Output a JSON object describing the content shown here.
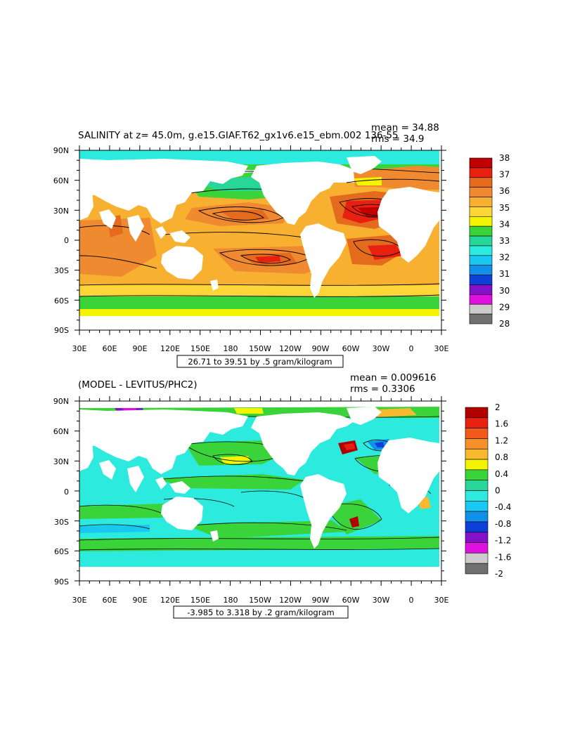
{
  "top": {
    "title": "SALINITY at z=  45.0m, g.e15.GIAF.T62_gx1v6.e15_ebm.002 136-55",
    "mean": "mean = 34.88",
    "rms": "rms = 34.9",
    "range_label": "26.71 to 39.51 by .5 gram/kilogram",
    "colorbar_labels": [
      "38",
      "37",
      "36",
      "35",
      "34",
      "33",
      "32",
      "31",
      "30",
      "29",
      "28"
    ],
    "colorbar_colors": [
      "#c00000",
      "#e82010",
      "#e46a1e",
      "#f08a30",
      "#f7b030",
      "#fcd639",
      "#f4f400",
      "#3ad43a",
      "#28d69a",
      "#2ceade",
      "#18c8f0",
      "#1090e8",
      "#0d40d8",
      "#8410c8",
      "#e010e0",
      "#cccccc",
      "#707070"
    ]
  },
  "bottom": {
    "title": "(MODEL - LEVITUS/PHC2)",
    "mean": "mean = 0.009616",
    "rms": "rms = 0.3306",
    "range_label": "-3.985 to 3.318 by .2 gram/kilogram",
    "colorbar_labels": [
      "2",
      "1.6",
      "1.2",
      "0.8",
      "0.4",
      "0",
      "-0.4",
      "-0.8",
      "-1.2",
      "-1.6",
      "-2"
    ],
    "colorbar_colors": [
      "#b00000",
      "#e82010",
      "#f05a1a",
      "#f5902a",
      "#f8b830",
      "#f4f400",
      "#3ad43a",
      "#28d69a",
      "#2ceade",
      "#18c8f0",
      "#1090e8",
      "#0d40d8",
      "#8410c8",
      "#e010e0",
      "#cccccc",
      "#707070"
    ]
  },
  "lat_labels": [
    "90N",
    "60N",
    "30N",
    "0",
    "30S",
    "60S",
    "90S"
  ],
  "lon_labels": [
    "30E",
    "60E",
    "90E",
    "120E",
    "150E",
    "180",
    "150W",
    "120W",
    "90W",
    "60W",
    "30W",
    "0",
    "30E"
  ]
}
